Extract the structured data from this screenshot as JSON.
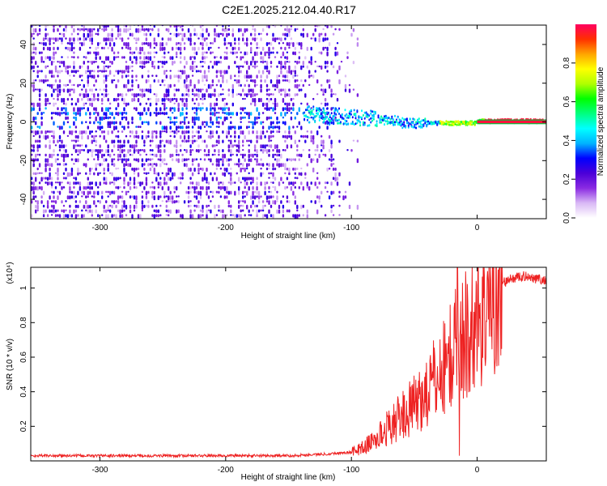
{
  "title": "C2E1.2025.212.04.40.R17",
  "chart_data": [
    {
      "type": "heatmap",
      "xlabel": "Height of straight line (km)",
      "ylabel": "Frequency (Hz)",
      "xlim": [
        -355,
        55
      ],
      "ylim": [
        -50,
        50
      ],
      "xticks": [
        -300,
        -200,
        -100,
        0
      ],
      "yticks": [
        -40,
        -20,
        0,
        20,
        40
      ],
      "colorbar": {
        "label": "Normalized spectral amplitude",
        "range": [
          0,
          1
        ],
        "ticks": [
          "0.0",
          "0.2",
          "0.4",
          "0.6",
          "0.8"
        ],
        "colors": [
          "#ffffff",
          "#d9b8f5",
          "#8a2be2",
          "#4b00d8",
          "#0000ff",
          "#00b4ff",
          "#00ffff",
          "#00ff80",
          "#00ff00",
          "#b0ff00",
          "#ffff00",
          "#ffa500",
          "#ff3000",
          "#ff0060"
        ]
      },
      "features": {
        "noise_region_x": [
          -355,
          -95
        ],
        "signal_line_start_x": -138,
        "signal_line_freq": 0,
        "high_amplitude_from_x": -30
      }
    },
    {
      "type": "line",
      "xlabel": "Height of straight line (km)",
      "ylabel": "SNR (10 * v/v)",
      "multiplier_label": "(x10⁴)",
      "xlim": [
        -355,
        55
      ],
      "ylim": [
        0,
        1.12
      ],
      "xticks": [
        -300,
        -200,
        -100,
        0
      ],
      "yticks": [
        0.2,
        0.4,
        0.6,
        0.8,
        1.0
      ],
      "ytick_labels": [
        "0.2",
        "0.4",
        "0.6",
        "0.8",
        "1"
      ],
      "color": "#ee2222",
      "series": [
        {
          "x": [
            -355,
            -300,
            -250,
            -200,
            -150,
            -120,
            -100,
            -90,
            -80,
            -70,
            -60,
            -50,
            -40,
            -30,
            -20,
            -10,
            0,
            10,
            20,
            30,
            40,
            50,
            55
          ],
          "y": [
            0.03,
            0.03,
            0.03,
            0.03,
            0.03,
            0.04,
            0.05,
            0.08,
            0.13,
            0.2,
            0.26,
            0.32,
            0.4,
            0.5,
            0.62,
            0.72,
            0.85,
            0.96,
            1.03,
            1.06,
            1.07,
            1.05,
            1.04
          ]
        }
      ]
    }
  ]
}
